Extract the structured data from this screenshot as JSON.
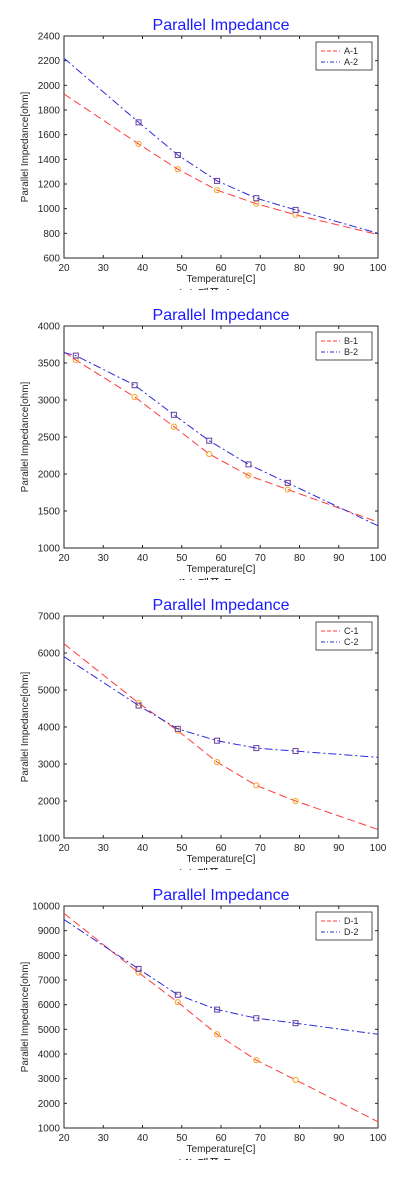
{
  "chart_data": [
    {
      "type": "line",
      "title": "Parallel Impedance",
      "xlabel": "Temperature[C]",
      "ylabel": "Parallel Impedance[ohm]",
      "xlim": [
        20,
        100
      ],
      "ylim": [
        600,
        2400
      ],
      "xticks": [
        20,
        30,
        40,
        50,
        60,
        70,
        80,
        90,
        100
      ],
      "yticks": [
        600,
        800,
        1000,
        1200,
        1400,
        1600,
        1800,
        2000,
        2200,
        2400
      ],
      "legend_position": "top-right",
      "caption": "(a) 제품 A",
      "series": [
        {
          "name": "A-1",
          "color": "#ff3b3b",
          "style": "dash",
          "marker": "circle",
          "marker_color": "#f5a623",
          "x": [
            20,
            39,
            49,
            59,
            69,
            79,
            100
          ],
          "y": [
            1930,
            1525,
            1320,
            1150,
            1040,
            950,
            790
          ],
          "marker_x": [
            39,
            49,
            59,
            69,
            79
          ]
        },
        {
          "name": "A-2",
          "color": "#2b2bd9",
          "style": "dashdot",
          "marker": "square",
          "marker_color": "#6a3fa0",
          "x": [
            20,
            39,
            49,
            59,
            69,
            79,
            100
          ],
          "y": [
            2220,
            1700,
            1435,
            1225,
            1085,
            990,
            800
          ],
          "marker_x": [
            39,
            49,
            59,
            69,
            79
          ]
        }
      ]
    },
    {
      "type": "line",
      "title": "Parallel Impedance",
      "xlabel": "Temperature[C]",
      "ylabel": "Parallel Impedance[ohm]",
      "xlim": [
        20,
        100
      ],
      "ylim": [
        1000,
        4000
      ],
      "xticks": [
        20,
        30,
        40,
        50,
        60,
        70,
        80,
        90,
        100
      ],
      "yticks": [
        1000,
        1500,
        2000,
        2500,
        3000,
        3500,
        4000
      ],
      "legend_position": "top-right",
      "caption": "(b) 제품 B",
      "series": [
        {
          "name": "B-1",
          "color": "#ff3b3b",
          "style": "dash",
          "marker": "circle",
          "marker_color": "#f5a623",
          "x": [
            20,
            23,
            38,
            48,
            57,
            67,
            77,
            100
          ],
          "y": [
            3650,
            3540,
            3040,
            2640,
            2270,
            1980,
            1790,
            1350
          ],
          "marker_x": [
            23,
            38,
            48,
            57,
            67,
            77
          ]
        },
        {
          "name": "B-2",
          "color": "#2b2bd9",
          "style": "dashdot",
          "marker": "square",
          "marker_color": "#6a3fa0",
          "x": [
            20,
            23,
            38,
            48,
            57,
            67,
            77,
            100
          ],
          "y": [
            3640,
            3600,
            3200,
            2800,
            2450,
            2130,
            1880,
            1300
          ],
          "marker_x": [
            23,
            38,
            48,
            57,
            67,
            77
          ]
        }
      ]
    },
    {
      "type": "line",
      "title": "Parallel Impedance",
      "xlabel": "Temperature[C]",
      "ylabel": "Parallel Impedance[ohm]",
      "xlim": [
        20,
        100
      ],
      "ylim": [
        1000,
        7000
      ],
      "xticks": [
        20,
        30,
        40,
        50,
        60,
        70,
        80,
        90,
        100
      ],
      "yticks": [
        1000,
        2000,
        3000,
        4000,
        5000,
        6000,
        7000
      ],
      "legend_position": "top-right",
      "caption": "(c) 제품 C",
      "series": [
        {
          "name": "C-1",
          "color": "#ff3b3b",
          "style": "dash",
          "marker": "circle",
          "marker_color": "#f5a623",
          "x": [
            20,
            39,
            49,
            59,
            69,
            79,
            100
          ],
          "y": [
            6250,
            4650,
            3900,
            3050,
            2420,
            2000,
            1230
          ],
          "marker_x": [
            39,
            49,
            59,
            69,
            79
          ]
        },
        {
          "name": "C-2",
          "color": "#2b2bd9",
          "style": "dashdot",
          "marker": "square",
          "marker_color": "#6a3fa0",
          "x": [
            20,
            39,
            49,
            59,
            69,
            79,
            100
          ],
          "y": [
            5900,
            4580,
            3950,
            3630,
            3430,
            3350,
            3180
          ],
          "marker_x": [
            39,
            49,
            59,
            69,
            79
          ]
        }
      ]
    },
    {
      "type": "line",
      "title": "Parallel Impedance",
      "xlabel": "Temperature[C]",
      "ylabel": "Parallel Impedance[ohm]",
      "xlim": [
        20,
        100
      ],
      "ylim": [
        1000,
        10000
      ],
      "xticks": [
        20,
        30,
        40,
        50,
        60,
        70,
        80,
        90,
        100
      ],
      "yticks": [
        1000,
        2000,
        3000,
        4000,
        5000,
        6000,
        7000,
        8000,
        9000,
        10000
      ],
      "legend_position": "top-right",
      "caption": "(d) 제품 D",
      "series": [
        {
          "name": "D-1",
          "color": "#ff3b3b",
          "style": "dash",
          "marker": "circle",
          "marker_color": "#f5a623",
          "x": [
            20,
            39,
            49,
            59,
            69,
            79,
            100
          ],
          "y": [
            9700,
            7300,
            6100,
            4800,
            3750,
            2950,
            1250
          ],
          "marker_x": [
            39,
            49,
            59,
            69,
            79
          ]
        },
        {
          "name": "D-2",
          "color": "#2b2bd9",
          "style": "dashdot",
          "marker": "square",
          "marker_color": "#6a3fa0",
          "x": [
            20,
            39,
            49,
            59,
            69,
            79,
            100
          ],
          "y": [
            9450,
            7450,
            6400,
            5800,
            5450,
            5250,
            4800
          ],
          "marker_x": [
            39,
            49,
            59,
            69,
            79
          ]
        }
      ]
    }
  ]
}
